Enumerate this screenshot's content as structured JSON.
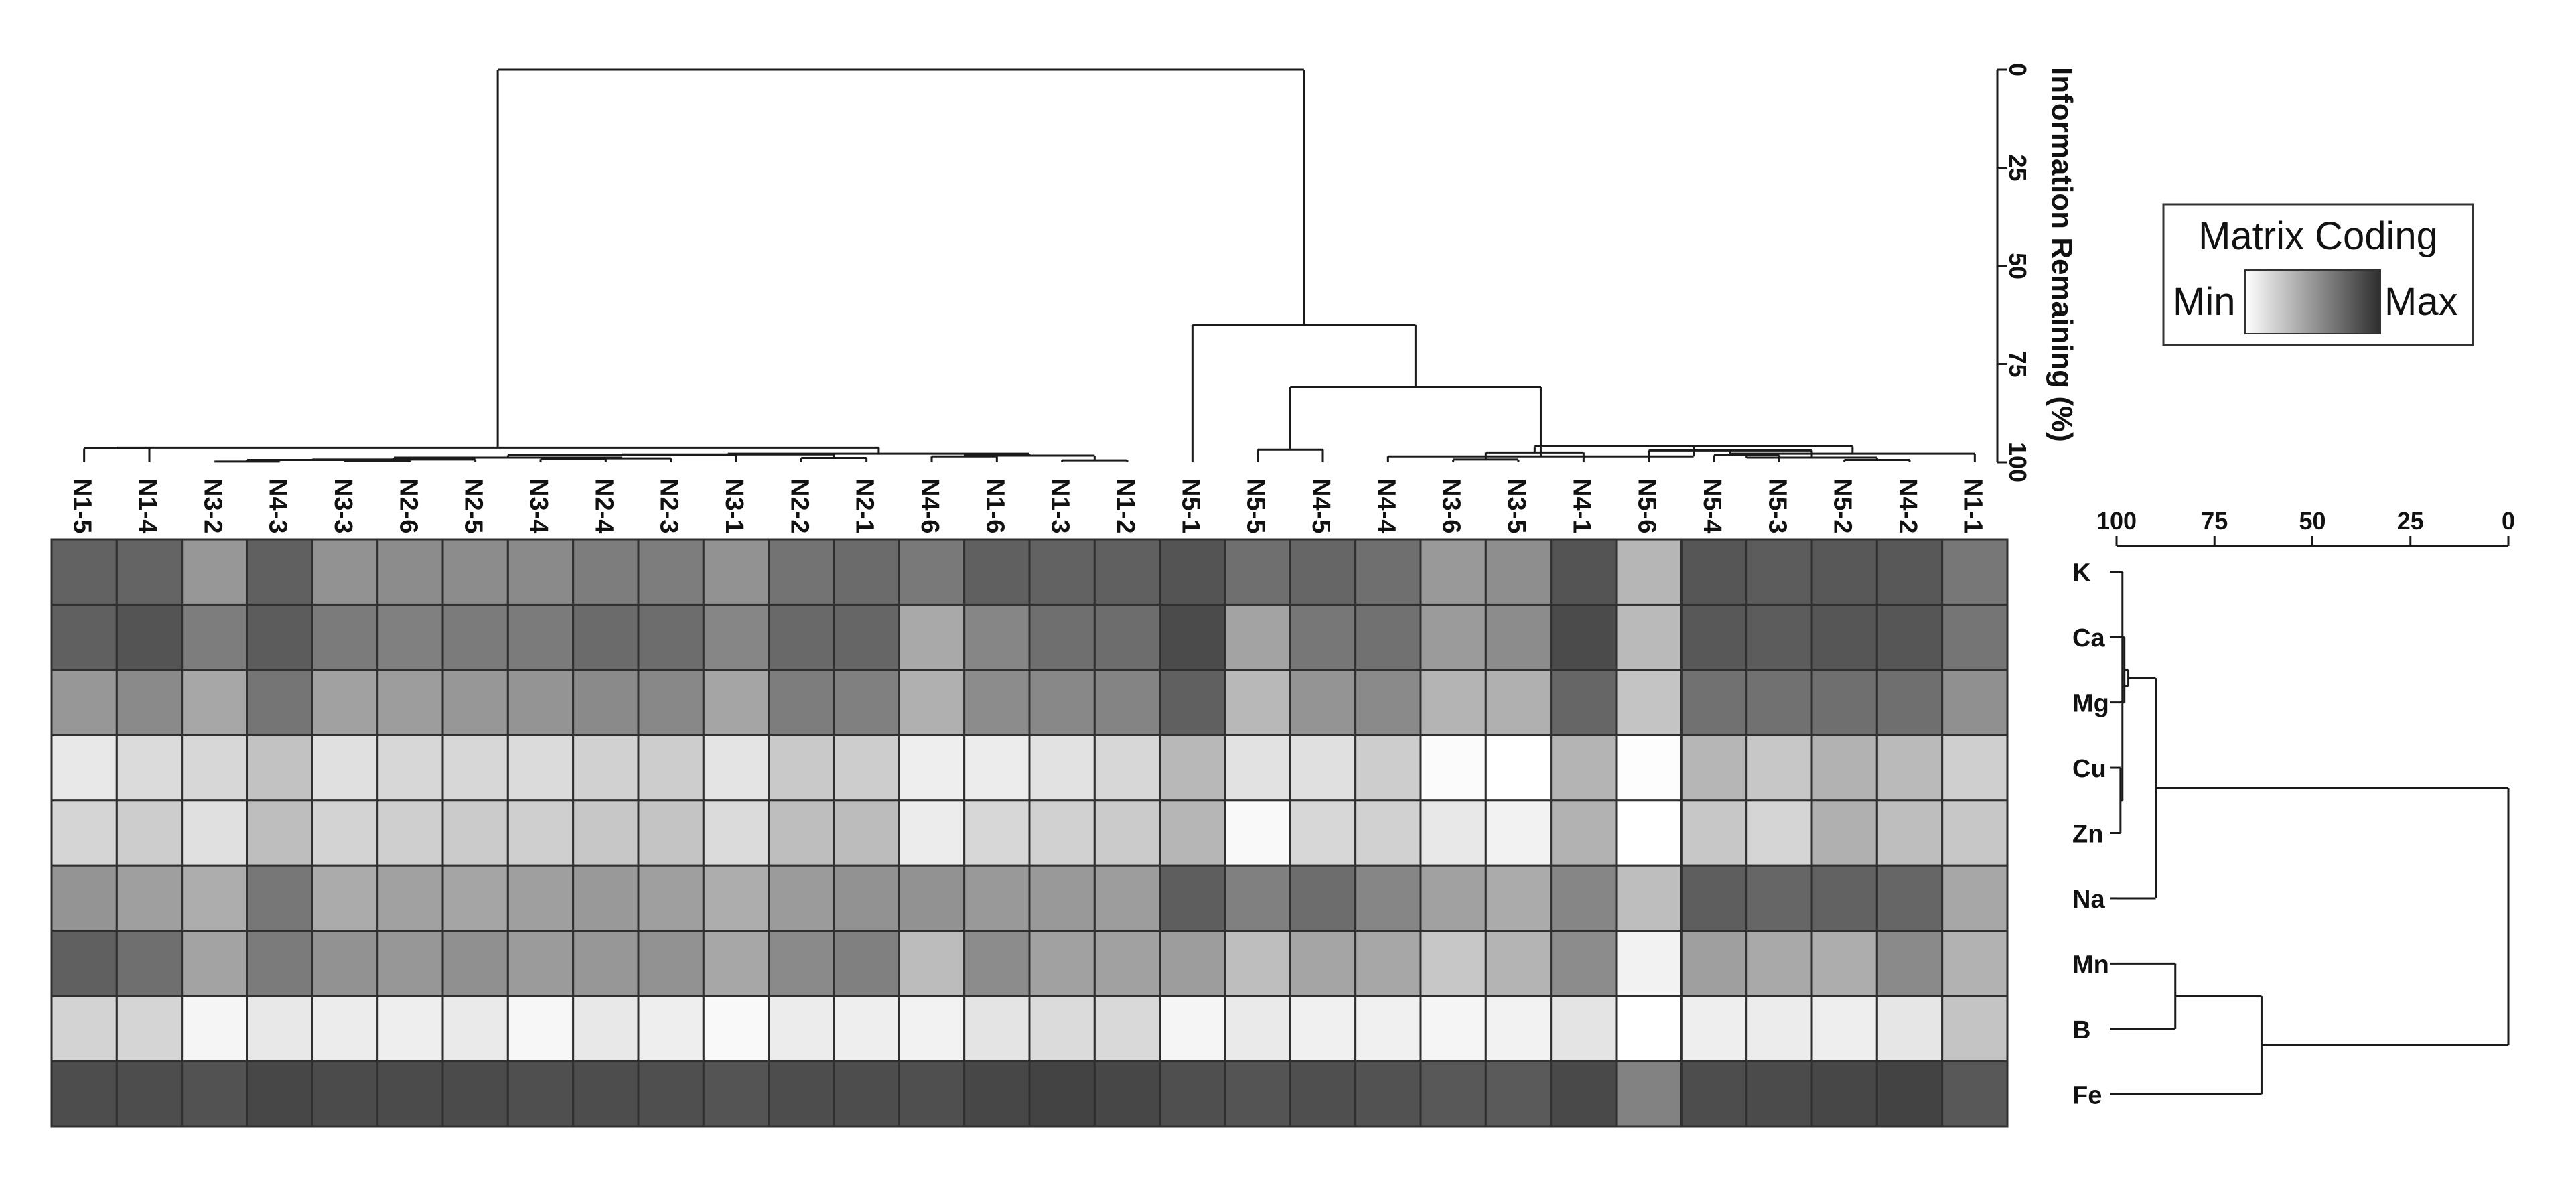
{
  "chart_data": {
    "type": "heatmap",
    "columns": [
      "N1-5",
      "N1-4",
      "N3-2",
      "N4-3",
      "N3-3",
      "N2-6",
      "N2-5",
      "N3-4",
      "N2-4",
      "N2-3",
      "N3-1",
      "N2-2",
      "N2-1",
      "N4-6",
      "N1-6",
      "N1-3",
      "N1-2",
      "N5-1",
      "N5-5",
      "N4-5",
      "N4-4",
      "N3-6",
      "N3-5",
      "N4-1",
      "N5-6",
      "N5-4",
      "N5-3",
      "N5-2",
      "N4-2",
      "N1-1"
    ],
    "rows": [
      "K",
      "Ca",
      "Mg",
      "Cu",
      "Zn",
      "Na",
      "Mn",
      "B",
      "Fe"
    ],
    "value_scale": "0 = Min (white), 1 = Max (dark)",
    "values": [
      [
        0.75,
        0.74,
        0.5,
        0.76,
        0.52,
        0.55,
        0.55,
        0.56,
        0.62,
        0.62,
        0.52,
        0.67,
        0.71,
        0.64,
        0.76,
        0.75,
        0.76,
        0.82,
        0.69,
        0.73,
        0.69,
        0.49,
        0.54,
        0.82,
        0.35,
        0.81,
        0.78,
        0.8,
        0.8,
        0.65
      ],
      [
        0.76,
        0.82,
        0.62,
        0.78,
        0.63,
        0.61,
        0.63,
        0.63,
        0.71,
        0.7,
        0.58,
        0.72,
        0.73,
        0.41,
        0.58,
        0.69,
        0.7,
        0.86,
        0.44,
        0.65,
        0.68,
        0.48,
        0.55,
        0.86,
        0.33,
        0.8,
        0.78,
        0.81,
        0.81,
        0.66
      ],
      [
        0.5,
        0.56,
        0.42,
        0.66,
        0.45,
        0.47,
        0.5,
        0.51,
        0.56,
        0.57,
        0.43,
        0.62,
        0.61,
        0.38,
        0.55,
        0.57,
        0.59,
        0.76,
        0.34,
        0.51,
        0.56,
        0.36,
        0.38,
        0.73,
        0.28,
        0.68,
        0.68,
        0.69,
        0.69,
        0.53
      ],
      [
        0.11,
        0.17,
        0.19,
        0.29,
        0.15,
        0.19,
        0.19,
        0.17,
        0.22,
        0.24,
        0.13,
        0.26,
        0.24,
        0.08,
        0.09,
        0.14,
        0.19,
        0.34,
        0.14,
        0.15,
        0.24,
        0.02,
        0.0,
        0.36,
        0.01,
        0.35,
        0.27,
        0.37,
        0.33,
        0.23
      ],
      [
        0.2,
        0.24,
        0.15,
        0.31,
        0.21,
        0.23,
        0.25,
        0.23,
        0.27,
        0.28,
        0.17,
        0.31,
        0.32,
        0.09,
        0.19,
        0.22,
        0.25,
        0.35,
        0.03,
        0.19,
        0.22,
        0.11,
        0.06,
        0.37,
        0.0,
        0.27,
        0.2,
        0.38,
        0.31,
        0.27
      ],
      [
        0.51,
        0.46,
        0.39,
        0.65,
        0.4,
        0.45,
        0.43,
        0.46,
        0.49,
        0.46,
        0.39,
        0.48,
        0.52,
        0.52,
        0.49,
        0.49,
        0.47,
        0.77,
        0.61,
        0.7,
        0.58,
        0.45,
        0.4,
        0.58,
        0.31,
        0.77,
        0.73,
        0.75,
        0.73,
        0.42
      ],
      [
        0.76,
        0.69,
        0.44,
        0.63,
        0.52,
        0.5,
        0.53,
        0.48,
        0.5,
        0.52,
        0.42,
        0.56,
        0.61,
        0.32,
        0.55,
        0.45,
        0.45,
        0.47,
        0.31,
        0.43,
        0.42,
        0.27,
        0.36,
        0.55,
        0.06,
        0.46,
        0.41,
        0.39,
        0.56,
        0.37
      ],
      [
        0.21,
        0.2,
        0.05,
        0.11,
        0.09,
        0.08,
        0.1,
        0.04,
        0.11,
        0.08,
        0.03,
        0.09,
        0.08,
        0.06,
        0.13,
        0.17,
        0.18,
        0.05,
        0.1,
        0.07,
        0.07,
        0.05,
        0.06,
        0.13,
        0.0,
        0.08,
        0.09,
        0.08,
        0.12,
        0.28
      ],
      [
        0.85,
        0.85,
        0.83,
        0.88,
        0.86,
        0.86,
        0.86,
        0.84,
        0.85,
        0.84,
        0.82,
        0.85,
        0.85,
        0.84,
        0.88,
        0.9,
        0.88,
        0.84,
        0.82,
        0.84,
        0.83,
        0.8,
        0.79,
        0.87,
        0.6,
        0.85,
        0.86,
        0.88,
        0.9,
        0.8
      ]
    ],
    "top_axis": {
      "label": "Information Remaining (%)",
      "ticks": [
        "0",
        "25",
        "50",
        "75",
        "100"
      ],
      "range": [
        0,
        100
      ]
    },
    "right_axis": {
      "ticks": [
        "100",
        "75",
        "50",
        "25",
        "0"
      ],
      "range": [
        100,
        0
      ]
    },
    "top_dendrogram": [
      {
        "a": "N3-4",
        "b": "N2-4",
        "h": 99.2
      },
      {
        "a": "N2-2",
        "b": "N2-1",
        "h": 98.9
      },
      {
        "a": "N1-3",
        "b": "N1-2",
        "h": 99.5
      },
      {
        "a": "N4-6",
        "b": "N1-6",
        "h": 98.5
      },
      {
        "a": "N3-6",
        "b": "N3-5",
        "h": 99.3
      },
      {
        "a": "N5-2",
        "b": "N4-2",
        "h": 99.4
      },
      {
        "a": "N5-5",
        "b": "N4-5",
        "h": 96.8
      },
      {
        "a": "N5-4",
        "b": "N5-3",
        "h": 98.2
      },
      {
        "a": "N1-5",
        "b": "N1-4",
        "h": 96.5
      },
      {
        "a": "N3-3",
        "b": "N2-6",
        "h": 99.6
      },
      {
        "a": "N3-2",
        "b": "N4-3",
        "h": 99.8
      }
    ],
    "legend": {
      "title": "Matrix Coding",
      "min_label": "Min",
      "max_label": "Max",
      "min_color": "#ffffff",
      "max_color": "#2e2e2e"
    },
    "colors": {
      "line": "#1a1a1a",
      "cell_border": "#2f2f2f"
    }
  }
}
